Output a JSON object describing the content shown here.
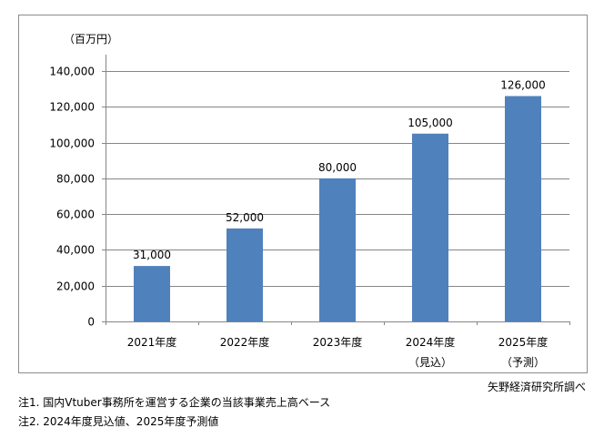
{
  "chart_data": {
    "type": "bar",
    "unit_label": "（百万円）",
    "categories": [
      "2021年度",
      "2022年度",
      "2023年度",
      "2024年度",
      "2025年度"
    ],
    "category_sublabels": [
      "",
      "",
      "",
      "（見込）",
      "（予測）"
    ],
    "values": [
      31000,
      52000,
      80000,
      105000,
      126000
    ],
    "data_labels": [
      "31,000",
      "52,000",
      "80,000",
      "105,000",
      "126,000"
    ],
    "yticks": [
      "0",
      "20,000",
      "40,000",
      "60,000",
      "80,000",
      "100,000",
      "120,000",
      "140,000"
    ],
    "ylim": [
      0,
      140000
    ],
    "grid": true,
    "bar_color": "#4f81bd",
    "legend": "none"
  },
  "source": "矢野経済研究所調べ",
  "notes": [
    "注1. 国内Vtuber事務所を運営する企業の当該事業売上高ベース",
    "注2. 2024年度見込値、2025年度予測値"
  ]
}
